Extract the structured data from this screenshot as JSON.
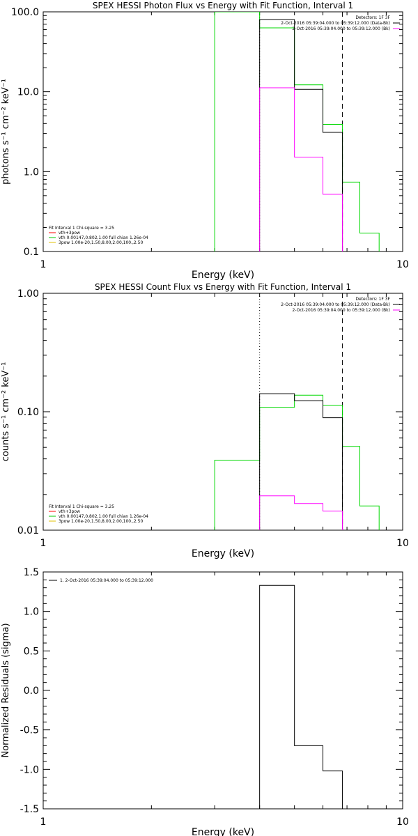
{
  "chart_data": [
    {
      "type": "line",
      "title": "SPEX HESSI Photon Flux vs Energy with Fit Function, Interval 1",
      "xlabel": "Energy (keV)",
      "ylabel": "photons s⁻¹ cm⁻² keV⁻¹",
      "xscale": "log",
      "yscale": "log",
      "xlim": [
        1,
        10
      ],
      "ylim": [
        0.1,
        100
      ],
      "xticks": [
        "1",
        "10"
      ],
      "yticks": [
        {
          "value": 100,
          "label": "100.0"
        },
        {
          "value": 10,
          "label": "10.0"
        },
        {
          "value": 1,
          "label": "1.0"
        },
        {
          "value": 0.1,
          "label": "0.1"
        }
      ],
      "legend_top_right": [
        {
          "text": "Detectors: 1F 3F",
          "color": ""
        },
        {
          "text": "2-Oct-2016 05:39:04.000 to 05:39:12.000 (Data-Bk)",
          "color": "#000000"
        },
        {
          "text": "2-Oct-2016 05:39:04.000 to 05:39:12.000 (Bk)",
          "color": "#ff00ff"
        }
      ],
      "legend_bottom_left": [
        {
          "text": "Fit Interval 1    Chi-square = 3.25",
          "color": ""
        },
        {
          "text": "vth+3pow",
          "color": "#ff0000"
        },
        {
          "text": "vth 0.00147,0.802,1.00   full chian 1.26e-04",
          "color": "#00c800"
        },
        {
          "text": "3pow 1.00e-20,1.50,8.00,2.00,100.,2.50",
          "color": "#e0c000"
        }
      ],
      "vlines": [
        {
          "x": 4.0,
          "style": "dotted"
        },
        {
          "x": 6.8,
          "style": "dashed"
        }
      ],
      "series": [
        {
          "color": "#00d800",
          "edges": [
            3.0,
            4.0,
            5.0,
            6.0,
            6.8,
            7.6,
            8.6
          ],
          "values": [
            100,
            63,
            12.2,
            3.9,
            0.74,
            0.17
          ]
        },
        {
          "color": "#000000",
          "edges": [
            4.0,
            5.0,
            6.0,
            6.8
          ],
          "values": [
            80,
            10.7,
            3.1
          ]
        },
        {
          "color": "#ff00ff",
          "edges": [
            4.0,
            5.0,
            6.0,
            6.8
          ],
          "values": [
            11.2,
            1.52,
            0.52
          ]
        }
      ]
    },
    {
      "type": "line",
      "title": "SPEX HESSI Count Flux vs Energy with Fit Function, Interval 1",
      "xlabel": "Energy (keV)",
      "ylabel": "counts s⁻¹ cm⁻² keV⁻¹",
      "xscale": "log",
      "yscale": "log",
      "xlim": [
        1,
        10
      ],
      "ylim": [
        0.01,
        1
      ],
      "xticks": [
        "1",
        "10"
      ],
      "yticks": [
        {
          "value": 1,
          "label": "1.00"
        },
        {
          "value": 0.1,
          "label": "0.10"
        },
        {
          "value": 0.01,
          "label": "0.01"
        }
      ],
      "legend_top_right": [
        {
          "text": "Detectors: 1F 3F",
          "color": ""
        },
        {
          "text": "2-Oct-2016 05:39:04.000 to 05:39:12.000 (Data-Bk)",
          "color": "#000000"
        },
        {
          "text": "2-Oct-2016 05:39:04.000 to 05:39:12.000 (Bk)",
          "color": "#ff00ff"
        }
      ],
      "legend_bottom_left": [
        {
          "text": "Fit Interval 1    Chi-square = 3.25",
          "color": ""
        },
        {
          "text": "vth+3pow",
          "color": "#ff0000"
        },
        {
          "text": "vth 0.00147,0.802,1.00   full chian 1.26e-04",
          "color": "#00c800"
        },
        {
          "text": "3pow 1.00e-20,1.50,8.00,2.00,100.,2.50",
          "color": "#e0c000"
        }
      ],
      "vlines": [
        {
          "x": 4.0,
          "style": "dotted"
        },
        {
          "x": 6.8,
          "style": "dashed"
        }
      ],
      "series": [
        {
          "color": "#00d800",
          "edges": [
            3.0,
            4.0,
            5.0,
            6.0,
            6.8,
            7.6,
            8.6
          ],
          "values": [
            0.039,
            0.109,
            0.138,
            0.113,
            0.051,
            0.016
          ]
        },
        {
          "color": "#000000",
          "edges": [
            4.0,
            5.0,
            6.0,
            6.8
          ],
          "values": [
            0.142,
            0.124,
            0.089
          ]
        },
        {
          "color": "#ff00ff",
          "edges": [
            4.0,
            5.0,
            6.0,
            6.8
          ],
          "values": [
            0.0195,
            0.0168,
            0.0145
          ]
        }
      ]
    },
    {
      "type": "line",
      "title": "",
      "xlabel": "Energy (keV)",
      "ylabel": "Normalized Residuals (sigma)",
      "xscale": "log",
      "yscale": "linear",
      "xlim": [
        1,
        10
      ],
      "ylim": [
        -1.5,
        1.5
      ],
      "xticks": [
        "1",
        "10"
      ],
      "yticks": [
        {
          "value": 1.5,
          "label": "1.5"
        },
        {
          "value": 1.0,
          "label": "1.0"
        },
        {
          "value": 0.5,
          "label": "0.5"
        },
        {
          "value": 0.0,
          "label": "0.0"
        },
        {
          "value": -0.5,
          "label": "-0.5"
        },
        {
          "value": -1.0,
          "label": "-1.0"
        },
        {
          "value": -1.5,
          "label": "-1.5"
        }
      ],
      "legend_top_left": [
        {
          "text": "1.  2-Oct-2016 05:39:04.000 to 05:39:12.000",
          "color": "#000000"
        }
      ],
      "vlines": [],
      "series": [
        {
          "color": "#000000",
          "edges": [
            4.0,
            5.0,
            6.0,
            6.8
          ],
          "values": [
            1.33,
            -0.7,
            -1.02
          ],
          "drop_to_bottom": true
        }
      ]
    }
  ]
}
